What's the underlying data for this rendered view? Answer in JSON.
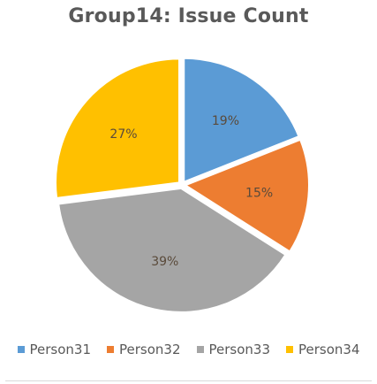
{
  "chart_data": {
    "type": "pie",
    "title": "Group14: Issue Count",
    "categories": [
      "Person31",
      "Person32",
      "Person33",
      "Person34"
    ],
    "values": [
      19,
      15,
      39,
      27
    ],
    "data_labels": [
      "19%",
      "15%",
      "39%",
      "27%"
    ],
    "colors": [
      "#5B9BD5",
      "#ED7D31",
      "#A5A5A5",
      "#FFC000"
    ],
    "label_color": "#5a4a3a",
    "legend_position": "bottom"
  }
}
